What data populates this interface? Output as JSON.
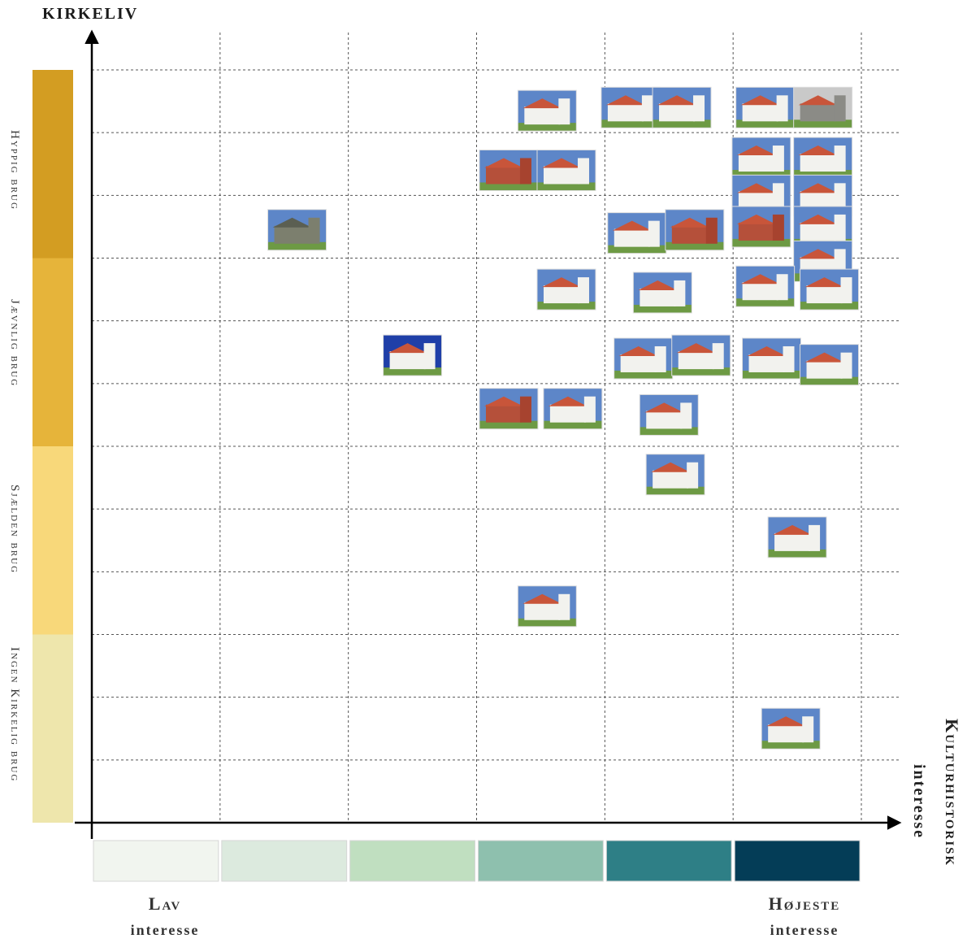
{
  "chart_data": {
    "type": "scatter",
    "ylabel": "KIRKELIV",
    "xlabel_lines": [
      "Kulturhistorisk",
      "interesse"
    ],
    "x_columns": 6,
    "y_levels": 12,
    "y_bands": [
      {
        "label": "Hyppig brug",
        "color": "#D39D22",
        "from": 9,
        "to": 12
      },
      {
        "label": "Jævnlig brug",
        "color": "#E6B43A",
        "from": 6,
        "to": 9
      },
      {
        "label": "Sjælden brug",
        "color": "#F8D87A",
        "from": 3,
        "to": 6
      },
      {
        "label": "Ingen Kirkelig brug",
        "color": "#EEE6AC",
        "from": 0,
        "to": 3
      }
    ],
    "x_scale_colors": [
      "#F1F5EF",
      "#DCEADE",
      "#C0DFC0",
      "#8EC0AE",
      "#2E7F86",
      "#043D57"
    ],
    "x_scale_labels": {
      "low": {
        "line1": "Lav",
        "line2": "interesse"
      },
      "high": {
        "line1": "Højeste",
        "line2": "interesse"
      }
    },
    "photo_colors": {
      "sky": "#5d86c8",
      "wall": "#f2f2ee",
      "roof": "#c8553a",
      "grass": "#6d9a44",
      "brick": "#b5503a"
    },
    "points": [
      {
        "x": 3.55,
        "y": 11.35,
        "style": "white"
      },
      {
        "x": 4.2,
        "y": 11.4,
        "style": "white"
      },
      {
        "x": 4.6,
        "y": 11.4,
        "style": "white"
      },
      {
        "x": 5.25,
        "y": 11.4,
        "style": "white"
      },
      {
        "x": 5.7,
        "y": 11.4,
        "style": "grey"
      },
      {
        "x": 3.25,
        "y": 10.4,
        "style": "brick"
      },
      {
        "x": 3.7,
        "y": 10.4,
        "style": "white"
      },
      {
        "x": 5.22,
        "y": 10.6,
        "style": "white"
      },
      {
        "x": 5.7,
        "y": 10.6,
        "style": "white"
      },
      {
        "x": 5.22,
        "y": 10.0,
        "style": "white"
      },
      {
        "x": 5.7,
        "y": 10.0,
        "style": "white"
      },
      {
        "x": 1.6,
        "y": 9.45,
        "style": "grass"
      },
      {
        "x": 4.25,
        "y": 9.4,
        "style": "white"
      },
      {
        "x": 4.7,
        "y": 9.45,
        "style": "brick"
      },
      {
        "x": 5.22,
        "y": 9.5,
        "style": "brick"
      },
      {
        "x": 5.7,
        "y": 9.5,
        "style": "white"
      },
      {
        "x": 5.7,
        "y": 8.95,
        "style": "white"
      },
      {
        "x": 3.7,
        "y": 8.5,
        "style": "white"
      },
      {
        "x": 4.45,
        "y": 8.45,
        "style": "white"
      },
      {
        "x": 5.25,
        "y": 8.55,
        "style": "white"
      },
      {
        "x": 5.75,
        "y": 8.5,
        "style": "white"
      },
      {
        "x": 2.5,
        "y": 7.45,
        "style": "blue"
      },
      {
        "x": 4.3,
        "y": 7.4,
        "style": "white"
      },
      {
        "x": 4.75,
        "y": 7.45,
        "style": "white"
      },
      {
        "x": 5.3,
        "y": 7.4,
        "style": "white"
      },
      {
        "x": 5.75,
        "y": 7.3,
        "style": "white"
      },
      {
        "x": 3.25,
        "y": 6.6,
        "style": "brick"
      },
      {
        "x": 3.75,
        "y": 6.6,
        "style": "white"
      },
      {
        "x": 4.5,
        "y": 6.5,
        "style": "white"
      },
      {
        "x": 4.55,
        "y": 5.55,
        "style": "white"
      },
      {
        "x": 5.5,
        "y": 4.55,
        "style": "white"
      },
      {
        "x": 3.55,
        "y": 3.45,
        "style": "white"
      },
      {
        "x": 5.45,
        "y": 1.5,
        "style": "white"
      }
    ]
  }
}
